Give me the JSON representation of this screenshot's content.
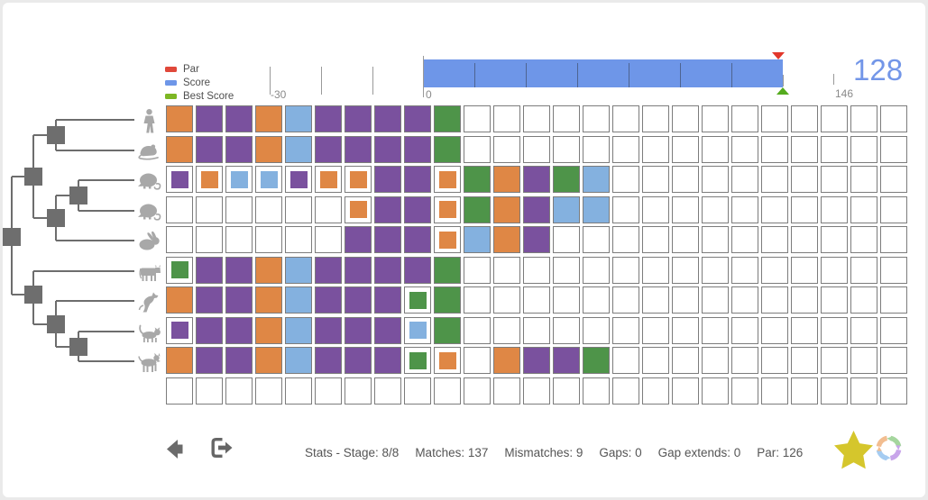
{
  "legend": {
    "items": [
      {
        "label": "Par",
        "color": "#e0483a"
      },
      {
        "label": "Score",
        "color": "#6e96e8"
      },
      {
        "label": "Best Score",
        "color": "#7db724"
      }
    ]
  },
  "score_bar": {
    "score_display": "128",
    "min_label": "-30",
    "zero_label": "0",
    "max_label": "146",
    "bar_color": "#6e96e8",
    "par_marker_color": "#e2372b",
    "best_marker_color": "#55ab1e"
  },
  "tree": {
    "leaves": [
      "human",
      "mouse",
      "opossum",
      "opossum",
      "rabbit",
      "cow",
      "horse",
      "cat",
      "dog"
    ]
  },
  "grid": {
    "columns": 25,
    "tile_colors": {
      "O": "#df8745",
      "P": "#7a519e",
      "B": "#84b1df",
      "G": "#4e9449"
    },
    "tile_names": {
      "O": "orange",
      "P": "purple",
      "B": "blue",
      "G": "green"
    },
    "rows": [
      "OPPOBPPPPG...............",
      "OPPOBPPPPG...............",
      "pobbpooPPoGOPGB..........",
      "......oPPoGOPBB..........",
      "......PPPoBOP............",
      "gPPOBPPPPG...............",
      "OPPOBPPPgG...............",
      "pPPOBPPPbG...............",
      "OPPOBPPPgo.OPPG..........",
      "........................."
    ]
  },
  "footer": {
    "stats": [
      "Stats - Stage: 8/8",
      "Matches: 137",
      "Mismatches: 9",
      "Gaps: 0",
      "Gap extends: 0",
      "Par: 126"
    ]
  }
}
